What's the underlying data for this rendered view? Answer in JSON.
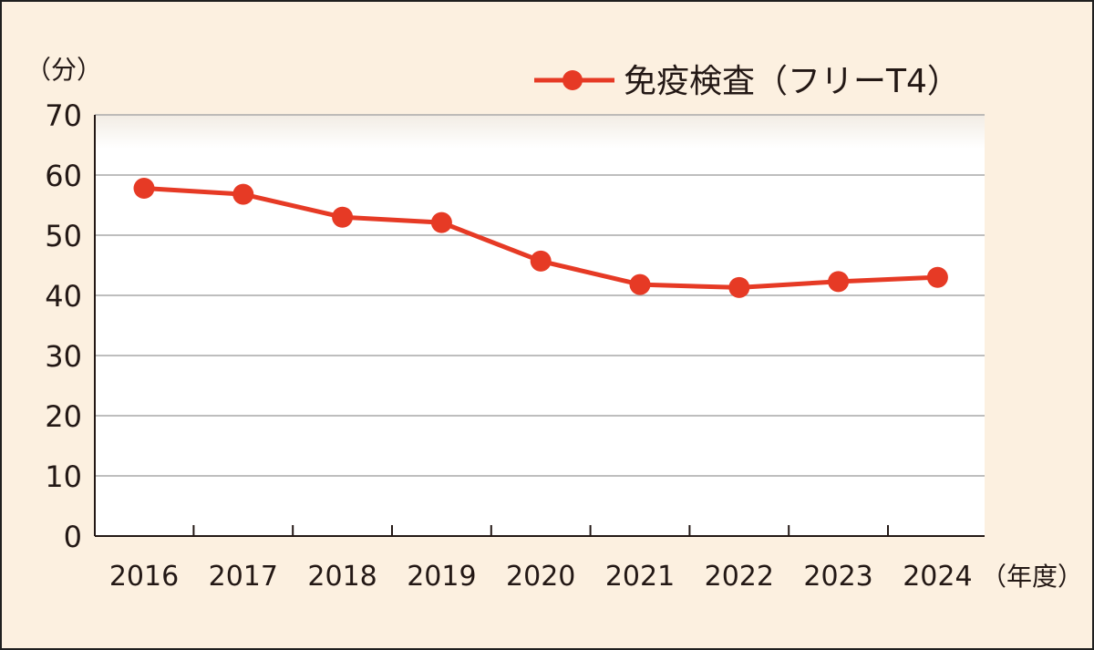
{
  "chart_data": {
    "type": "line",
    "ylabel": "（分）",
    "xlabel": "（年度）",
    "categories": [
      "2016",
      "2017",
      "2018",
      "2019",
      "2020",
      "2021",
      "2022",
      "2023",
      "2024"
    ],
    "ylim": [
      0,
      70
    ],
    "yticks": [
      "0",
      "10",
      "20",
      "30",
      "40",
      "50",
      "60",
      "70"
    ],
    "grid": true,
    "legend_position": "top-right",
    "series": [
      {
        "name": "免疫検査（フリーT4）",
        "values": [
          57.8,
          56.8,
          53.0,
          52.1,
          45.7,
          41.8,
          41.3,
          42.3,
          43.0
        ]
      }
    ]
  },
  "colors": {
    "background": "#fcf0e0",
    "plot_background": "#ffffff",
    "series": "#e63a25",
    "grid": "#a9a9a9",
    "axis": "#231815"
  }
}
